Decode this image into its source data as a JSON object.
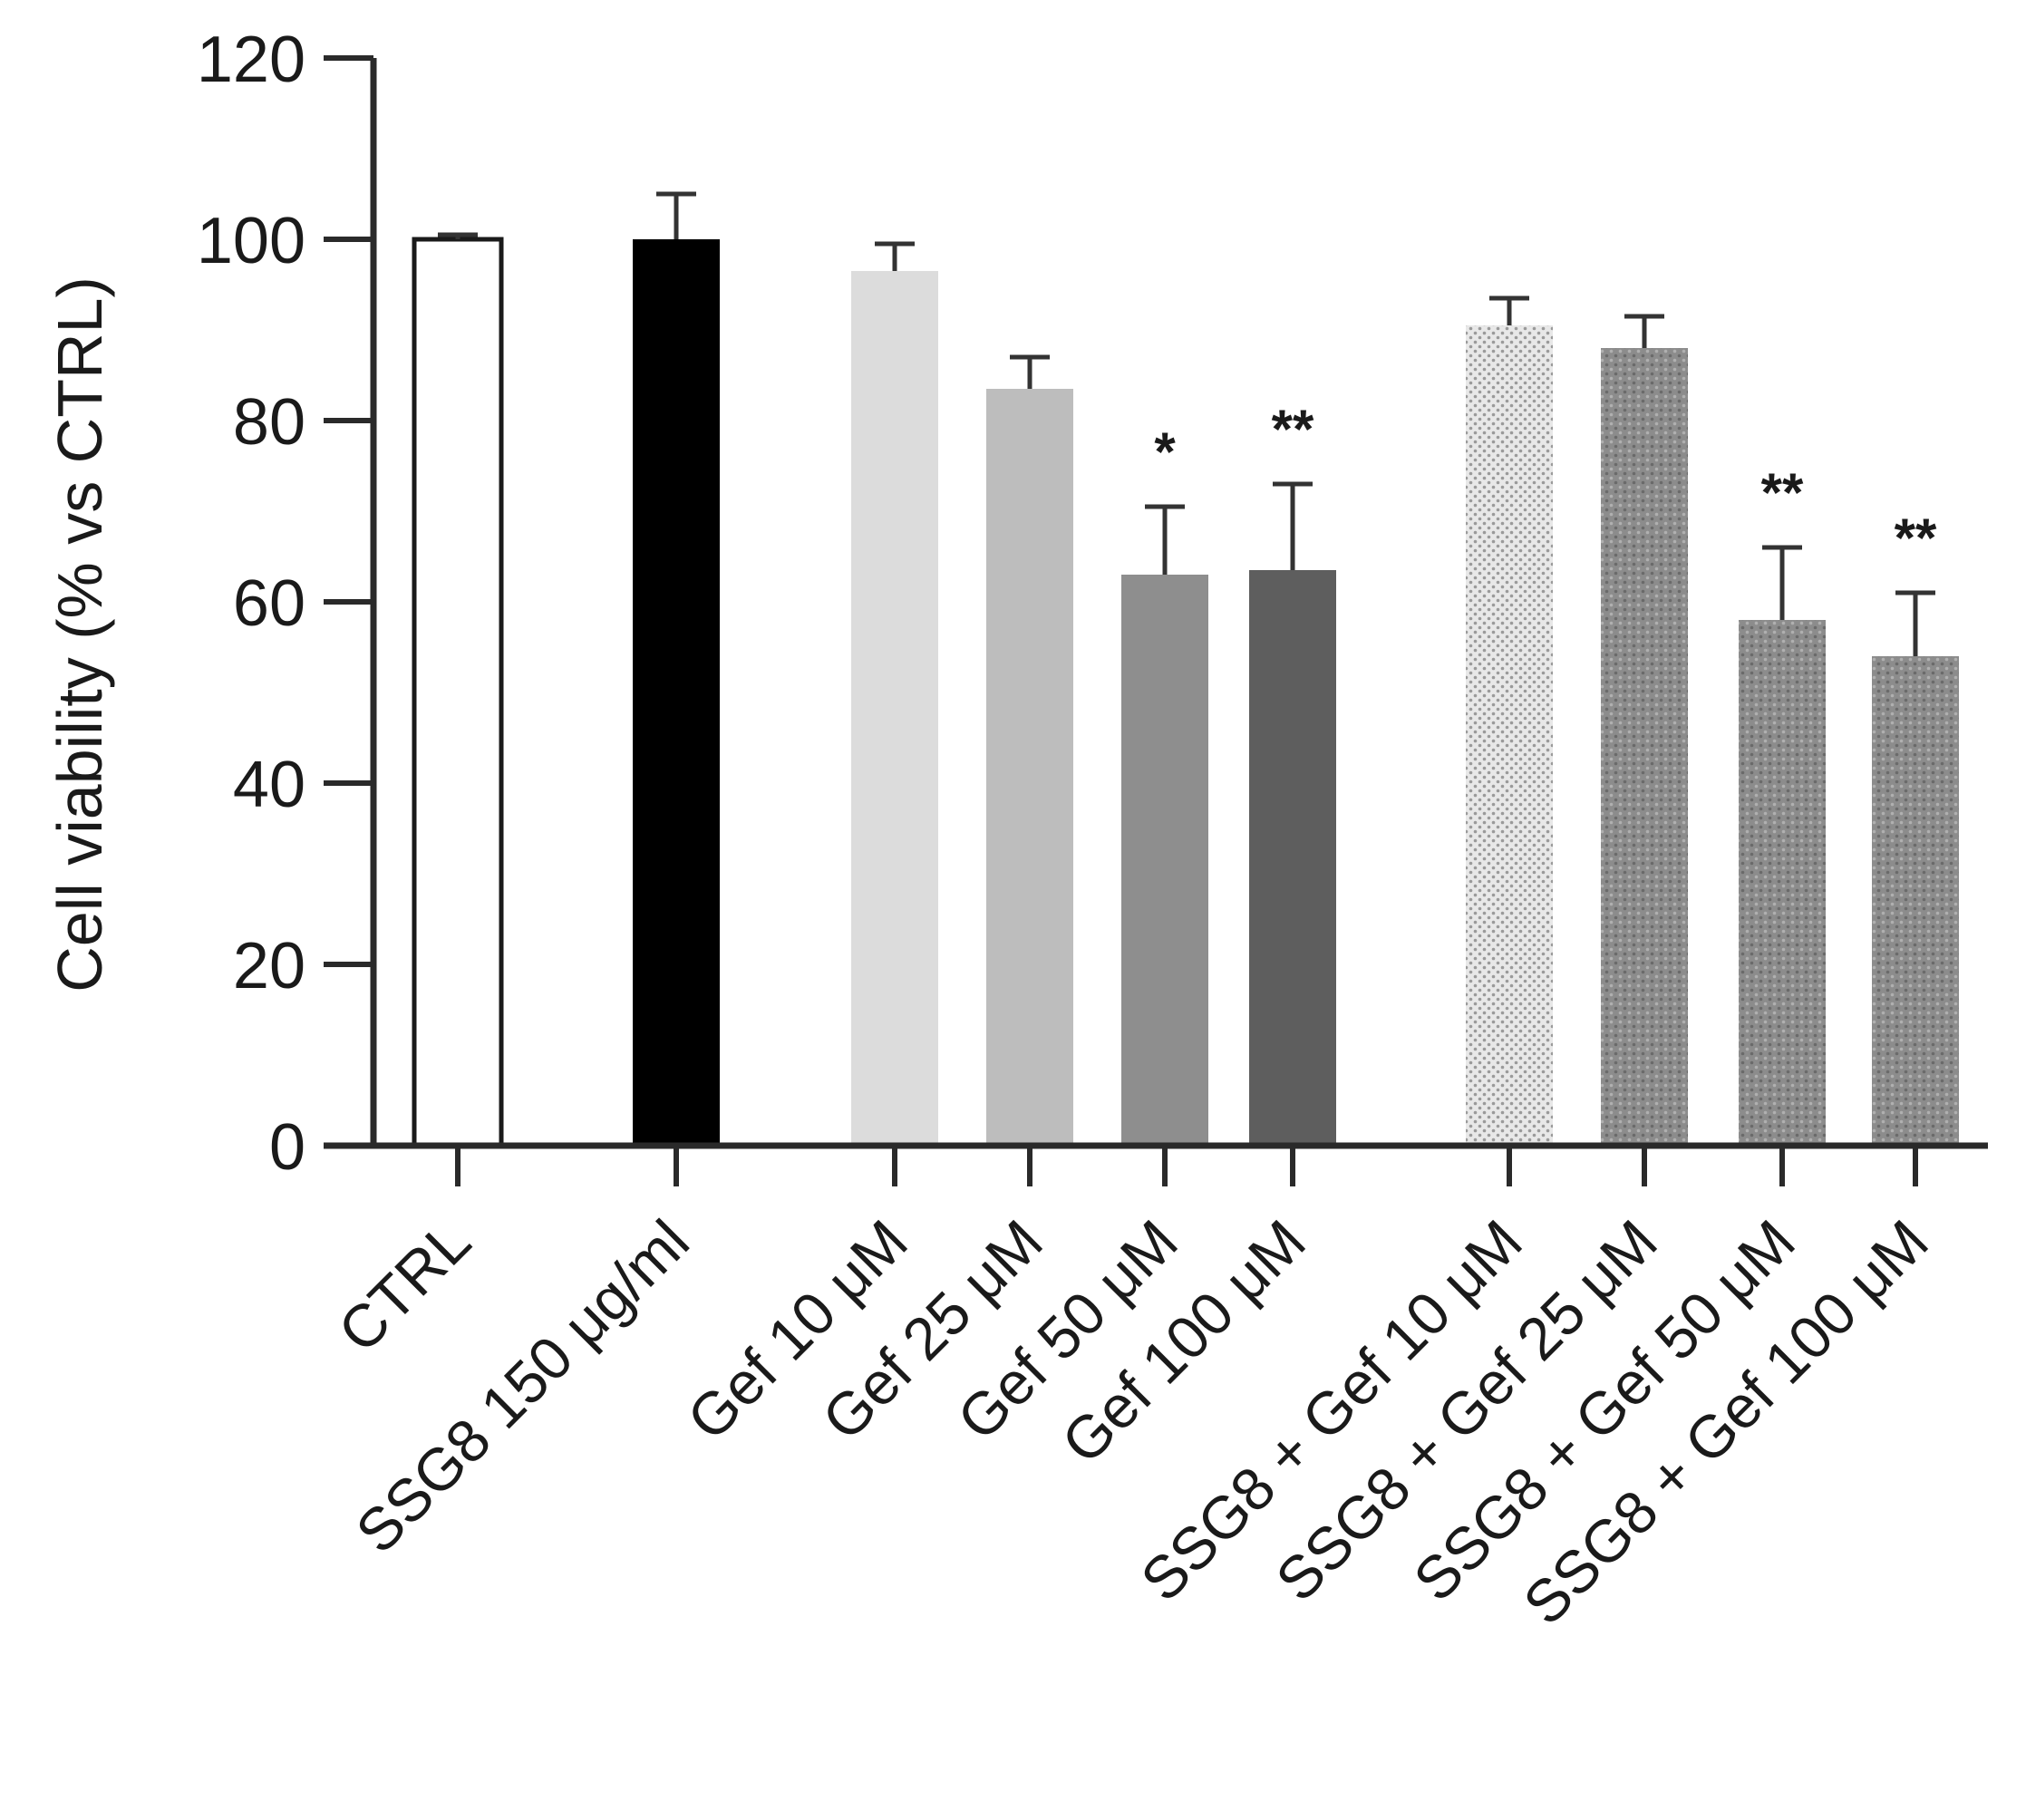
{
  "chart_data": {
    "type": "bar",
    "title": "",
    "xlabel": "",
    "ylabel": "Cell viability (% vs CTRL)",
    "ylim": [
      0,
      120
    ],
    "yticks": [
      "0",
      "20",
      "40",
      "60",
      "80",
      "100",
      "120"
    ],
    "grid": false,
    "legend": "none",
    "categories": [
      "CTRL",
      "SSG8 150 μg/ml",
      "Gef 10 μM",
      "Gef 25 μM",
      "Gef 50 μM",
      "Gef 100 μM",
      "SSG8 + Gef 10 μM",
      "SSG8 + Gef 25 μM",
      "SSG8 + Gef 50 μM",
      "SSG8 + Gef 100 μM"
    ],
    "values": [
      100,
      100,
      96.5,
      83.5,
      63,
      63.5,
      90.5,
      88,
      58,
      54
    ],
    "error_bars": [
      0.5,
      5,
      3,
      3.5,
      7.5,
      9.5,
      3,
      3.5,
      8,
      7
    ],
    "significance": [
      "",
      "",
      "",
      "",
      "*",
      "**",
      "",
      "",
      "**",
      "**"
    ],
    "bar_colors": [
      "#ffffff",
      "#000000",
      "#dcdcdc",
      "#bdbdbd",
      "#8e8e8e",
      "#5e5e5e",
      "#e6e6e6",
      "#8c8c8c",
      "#7a7a7a",
      "#a0a0a0"
    ],
    "bar_patterns": [
      "none",
      "none",
      "none",
      "none",
      "none",
      "none",
      "dots-light",
      "dots-dark",
      "dots-dark",
      "dots-dark"
    ]
  }
}
